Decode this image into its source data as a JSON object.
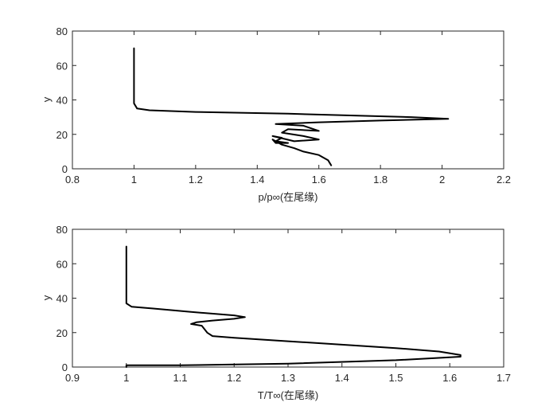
{
  "colors": {
    "axis": "#262626",
    "line": "#000000",
    "background": "#ffffff"
  },
  "chart_data": [
    {
      "type": "line",
      "xlabel": "p/p∞(在尾缘)",
      "ylabel": "y",
      "xlim": [
        0.8,
        2.2
      ],
      "ylim": [
        0,
        80
      ],
      "xticks": [
        0.8,
        1,
        1.2,
        1.4,
        1.6,
        1.8,
        2,
        2.2
      ],
      "yticks": [
        0,
        20,
        40,
        60,
        80
      ],
      "xtick_labels": [
        "0.8",
        "1",
        "1.2",
        "1.4",
        "1.6",
        "1.8",
        "2",
        "2.2"
      ],
      "ytick_labels": [
        "0",
        "20",
        "40",
        "60",
        "80"
      ],
      "grid": false,
      "series": [
        {
          "x": [
            1.0,
            1.0,
            1.0,
            1.0,
            1.01,
            1.05,
            1.2,
            1.5,
            1.9,
            2.02,
            1.8,
            1.6,
            1.46,
            1.55,
            1.6,
            1.5,
            1.48,
            1.55,
            1.6,
            1.52,
            1.45,
            1.48,
            1.46,
            1.5,
            1.46,
            1.45,
            1.48,
            1.52,
            1.55,
            1.6,
            1.63,
            1.64
          ],
          "y": [
            70,
            60,
            45,
            38,
            35,
            34,
            33,
            32,
            30,
            29,
            28,
            27,
            26,
            25,
            22,
            23,
            21,
            19,
            17,
            16,
            19,
            18,
            16,
            15,
            15,
            17,
            14,
            12,
            10,
            8,
            5,
            2
          ]
        }
      ]
    },
    {
      "type": "line",
      "xlabel": "T/T∞(在尾缘)",
      "ylabel": "y",
      "xlim": [
        0.9,
        1.7
      ],
      "ylim": [
        0,
        80
      ],
      "xticks": [
        0.9,
        1,
        1.1,
        1.2,
        1.3,
        1.4,
        1.5,
        1.6,
        1.7
      ],
      "yticks": [
        0,
        20,
        40,
        60,
        80
      ],
      "xtick_labels": [
        "0.9",
        "1",
        "1.1",
        "1.2",
        "1.3",
        "1.4",
        "1.5",
        "1.6",
        "1.7"
      ],
      "ytick_labels": [
        "0",
        "20",
        "40",
        "60",
        "80"
      ],
      "grid": false,
      "series": [
        {
          "x": [
            1.0,
            1.0,
            1.0,
            1.0,
            1.01,
            1.05,
            1.12,
            1.2,
            1.22,
            1.2,
            1.16,
            1.13,
            1.12,
            1.14,
            1.15,
            1.16,
            1.2,
            1.3,
            1.4,
            1.5,
            1.58,
            1.62,
            1.62,
            1.5,
            1.3,
            1.1,
            1.0,
            1.0
          ],
          "y": [
            70,
            60,
            45,
            37,
            35,
            34,
            32,
            30,
            29,
            28,
            27,
            26,
            25,
            24,
            20,
            18,
            17,
            15,
            13,
            11,
            9,
            7,
            6,
            4,
            2,
            1,
            1,
            0
          ]
        }
      ]
    }
  ]
}
